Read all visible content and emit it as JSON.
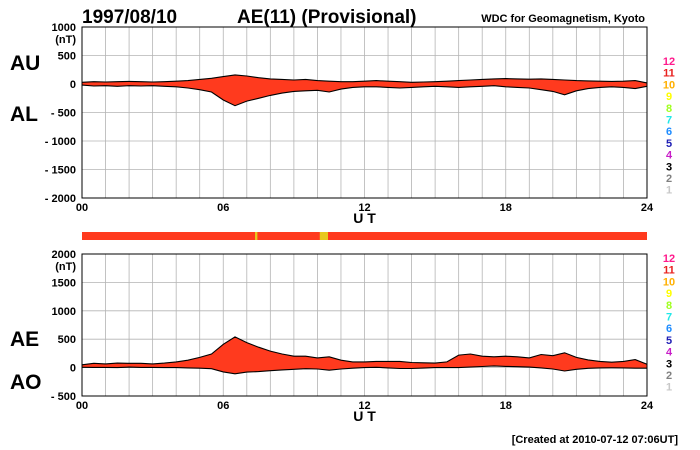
{
  "header": {
    "date": "1997/08/10",
    "title": "AE(11) (Provisional)",
    "source": "WDC for Geomagnetism, Kyoto"
  },
  "footer": {
    "created": "[Created at 2010-07-12 07:06UT]"
  },
  "colors": {
    "fill": "#ff3a1e",
    "line": "#000000",
    "grid": "#b4b4b4",
    "bar": "#ff3a1e",
    "bar_marker_yellow": "#e8c81e",
    "bar_marker_orange": "#e8901e"
  },
  "station_scale": {
    "labels": [
      "12",
      "11",
      "10",
      "9",
      "8",
      "7",
      "6",
      "5",
      "4",
      "3",
      "2",
      "1"
    ],
    "colors": [
      "#ff1a8c",
      "#e8201e",
      "#ffb000",
      "#ffff00",
      "#a0ff20",
      "#20e8e8",
      "#1e8cff",
      "#1e1eb4",
      "#c81ec8",
      "#000000",
      "#808080",
      "#c8c8c8"
    ]
  },
  "chart_data": [
    {
      "type": "area",
      "panel": "AU/AL",
      "upper_label": "AU",
      "lower_label": "AL",
      "unit": "(nT)",
      "xlabel": "U T",
      "xlim": [
        0,
        24
      ],
      "xticks": [
        "00",
        "06",
        "12",
        "18",
        "24"
      ],
      "ylim": [
        -2000,
        1000
      ],
      "yticks": [
        "1000",
        "500",
        "0",
        "- 500",
        "- 1000",
        "- 1500",
        "- 2000"
      ],
      "grid": true,
      "series": [
        {
          "name": "AU",
          "x": [
            0,
            0.5,
            1,
            1.5,
            2,
            2.5,
            3,
            3.5,
            4,
            4.5,
            5,
            5.5,
            6,
            6.5,
            7,
            7.5,
            8,
            8.5,
            9,
            9.5,
            10,
            10.5,
            11,
            11.5,
            12,
            12.5,
            13,
            13.5,
            14,
            14.5,
            15,
            15.5,
            16,
            16.5,
            17,
            17.5,
            18,
            18.5,
            19,
            19.5,
            20,
            20.5,
            21,
            21.5,
            22,
            22.5,
            23,
            23.5,
            24
          ],
          "values": [
            30,
            40,
            35,
            40,
            45,
            40,
            35,
            40,
            50,
            60,
            80,
            100,
            130,
            160,
            140,
            110,
            90,
            80,
            70,
            80,
            60,
            50,
            40,
            40,
            50,
            60,
            50,
            40,
            30,
            35,
            40,
            50,
            60,
            70,
            80,
            90,
            95,
            90,
            85,
            90,
            80,
            70,
            60,
            55,
            50,
            45,
            50,
            60,
            20
          ]
        },
        {
          "name": "AL",
          "x": [
            0,
            0.5,
            1,
            1.5,
            2,
            2.5,
            3,
            3.5,
            4,
            4.5,
            5,
            5.5,
            6,
            6.5,
            7,
            7.5,
            8,
            8.5,
            9,
            9.5,
            10,
            10.5,
            11,
            11.5,
            12,
            12.5,
            13,
            13.5,
            14,
            14.5,
            15,
            15.5,
            16,
            16.5,
            17,
            17.5,
            18,
            18.5,
            19,
            19.5,
            20,
            20.5,
            21,
            21.5,
            22,
            22.5,
            23,
            23.5,
            24
          ],
          "values": [
            -20,
            -35,
            -30,
            -40,
            -30,
            -35,
            -30,
            -40,
            -50,
            -70,
            -100,
            -140,
            -280,
            -380,
            -300,
            -250,
            -200,
            -160,
            -130,
            -120,
            -110,
            -140,
            -90,
            -60,
            -50,
            -50,
            -60,
            -70,
            -60,
            -50,
            -40,
            -50,
            -60,
            -50,
            -40,
            -30,
            -50,
            -60,
            -70,
            -100,
            -130,
            -190,
            -120,
            -80,
            -60,
            -50,
            -60,
            -80,
            -40
          ]
        }
      ]
    },
    {
      "type": "area",
      "panel": "AE/AO",
      "upper_label": "AE",
      "lower_label": "AO",
      "unit": "(nT)",
      "xlabel": "U T",
      "xlim": [
        0,
        24
      ],
      "xticks": [
        "00",
        "06",
        "12",
        "18",
        "24"
      ],
      "ylim": [
        -500,
        2000
      ],
      "yticks": [
        "2000",
        "1500",
        "1000",
        "500",
        "0",
        "- 500"
      ],
      "grid": true,
      "series": [
        {
          "name": "AE",
          "x": [
            0,
            0.5,
            1,
            1.5,
            2,
            2.5,
            3,
            3.5,
            4,
            4.5,
            5,
            5.5,
            6,
            6.5,
            7,
            7.5,
            8,
            8.5,
            9,
            9.5,
            10,
            10.5,
            11,
            11.5,
            12,
            12.5,
            13,
            13.5,
            14,
            14.5,
            15,
            15.5,
            16,
            16.5,
            17,
            17.5,
            18,
            18.5,
            19,
            19.5,
            20,
            20.5,
            21,
            21.5,
            22,
            22.5,
            23,
            23.5,
            24
          ],
          "values": [
            50,
            75,
            65,
            80,
            75,
            75,
            65,
            80,
            100,
            130,
            180,
            240,
            410,
            540,
            440,
            360,
            290,
            240,
            200,
            200,
            170,
            190,
            130,
            100,
            100,
            110,
            110,
            110,
            90,
            85,
            80,
            100,
            220,
            240,
            200,
            190,
            200,
            190,
            170,
            230,
            210,
            260,
            180,
            135,
            110,
            95,
            110,
            140,
            60
          ]
        },
        {
          "name": "AO",
          "x": [
            0,
            0.5,
            1,
            1.5,
            2,
            2.5,
            3,
            3.5,
            4,
            4.5,
            5,
            5.5,
            6,
            6.5,
            7,
            7.5,
            8,
            8.5,
            9,
            9.5,
            10,
            10.5,
            11,
            11.5,
            12,
            12.5,
            13,
            13.5,
            14,
            14.5,
            15,
            15.5,
            16,
            16.5,
            17,
            17.5,
            18,
            18.5,
            19,
            19.5,
            20,
            20.5,
            21,
            21.5,
            22,
            22.5,
            23,
            23.5,
            24
          ],
          "values": [
            5,
            3,
            3,
            0,
            8,
            3,
            3,
            0,
            0,
            -5,
            -10,
            -20,
            -75,
            -110,
            -80,
            -70,
            -55,
            -40,
            -30,
            -20,
            -25,
            -45,
            -25,
            -10,
            0,
            5,
            -5,
            -15,
            -15,
            -8,
            0,
            0,
            0,
            10,
            20,
            30,
            22,
            15,
            8,
            -5,
            -25,
            -60,
            -30,
            -12,
            -5,
            -3,
            -5,
            -10,
            -10
          ]
        }
      ]
    }
  ],
  "station_bar": {
    "segments": [
      {
        "from": 0,
        "to": 24,
        "color_index": 1
      },
      {
        "from": 7.35,
        "to": 7.45,
        "color_index": 2
      },
      {
        "from": 10.1,
        "to": 10.45,
        "color_index": 2
      }
    ]
  }
}
